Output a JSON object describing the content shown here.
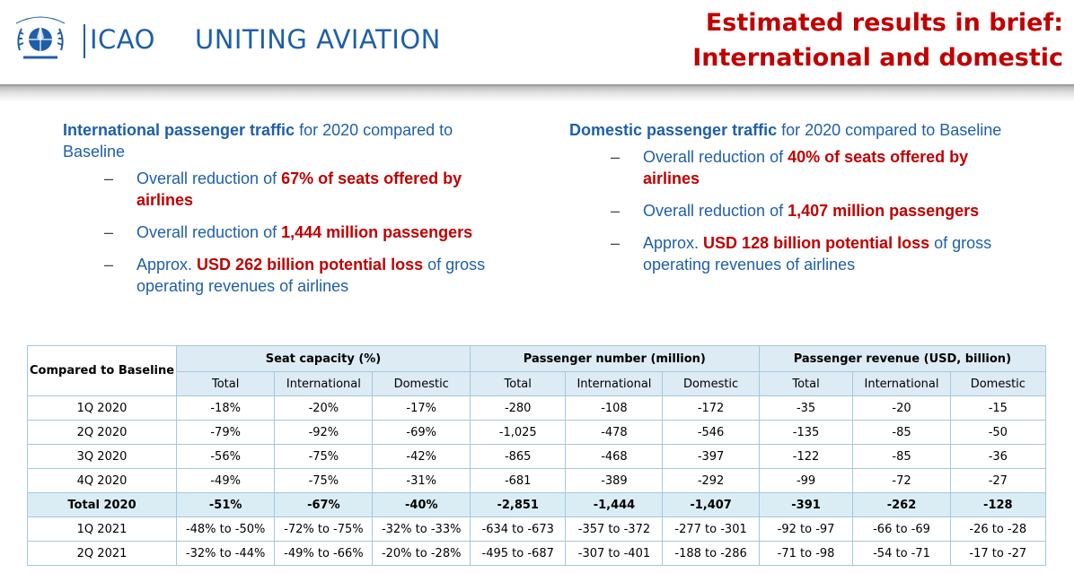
{
  "header": {
    "logo_text_a": "ICAO",
    "logo_text_b": "UNITING AVIATION",
    "title_line1": "Estimated results in brief:",
    "title_line2": "International and domestic"
  },
  "colors": {
    "brand_blue": "#1f5fa9",
    "accent_red": "#c00000",
    "table_header_bg": "#dcebf4"
  },
  "left": {
    "heading_bold": "International passenger traffic",
    "heading_rest": " for 2020 compared to Baseline",
    "bullets": [
      {
        "pre": "Overall reduction of ",
        "hl": "67% of seats offered by airlines",
        "post": ""
      },
      {
        "pre": "Overall reduction of ",
        "hl": "1,444 million passengers",
        "post": ""
      },
      {
        "pre": "Approx. ",
        "hl": "USD 262 billion potential loss",
        "post": " of gross operating revenues of airlines"
      }
    ]
  },
  "right": {
    "heading_bold": "Domestic passenger traffic",
    "heading_rest": " for 2020 compared to Baseline",
    "bullets": [
      {
        "pre": "Overall reduction of ",
        "hl": "40% of seats offered by airlines",
        "post": ""
      },
      {
        "pre": "Overall reduction of ",
        "hl": "1,407 million passengers",
        "post": ""
      },
      {
        "pre": "Approx. ",
        "hl": "USD 128 billion potential loss",
        "post": " of gross operating revenues of airlines"
      }
    ]
  },
  "bullet_dash": "–",
  "table": {
    "corner": "Compared to Baseline",
    "groups": [
      "Seat capacity (%)",
      "Passenger number (million)",
      "Passenger revenue (USD, billion)"
    ],
    "subheaders": [
      "Total",
      "International",
      "Domestic",
      "Total",
      "International",
      "Domestic",
      "Total",
      "International",
      "Domestic"
    ],
    "rows": [
      {
        "label": "1Q 2020",
        "cells": [
          "-18%",
          "-20%",
          "-17%",
          "-280",
          "-108",
          "-172",
          "-35",
          "-20",
          "-15"
        ],
        "total": false
      },
      {
        "label": "2Q 2020",
        "cells": [
          "-79%",
          "-92%",
          "-69%",
          "-1,025",
          "-478",
          "-546",
          "-135",
          "-85",
          "-50"
        ],
        "total": false
      },
      {
        "label": "3Q 2020",
        "cells": [
          "-56%",
          "-75%",
          "-42%",
          "-865",
          "-468",
          "-397",
          "-122",
          "-85",
          "-36"
        ],
        "total": false
      },
      {
        "label": "4Q 2020",
        "cells": [
          "-49%",
          "-75%",
          "-31%",
          "-681",
          "-389",
          "-292",
          "-99",
          "-72",
          "-27"
        ],
        "total": false
      },
      {
        "label": "Total 2020",
        "cells": [
          "-51%",
          "-67%",
          "-40%",
          "-2,851",
          "-1,444",
          "-1,407",
          "-391",
          "-262",
          "-128"
        ],
        "total": true
      },
      {
        "label": "1Q 2021",
        "cells": [
          "-48% to -50%",
          "-72% to -75%",
          "-32% to -33%",
          "-634 to -673",
          "-357 to -372",
          "-277 to -301",
          "-92 to -97",
          "-66 to -69",
          "-26 to -28"
        ],
        "total": false
      },
      {
        "label": "2Q 2021",
        "cells": [
          "-32% to -44%",
          "-49% to -66%",
          "-20% to -28%",
          "-495 to -687",
          "-307 to -401",
          "-188 to -286",
          "-71 to -98",
          "-54 to -71",
          "-17 to -27"
        ],
        "total": false
      }
    ]
  }
}
